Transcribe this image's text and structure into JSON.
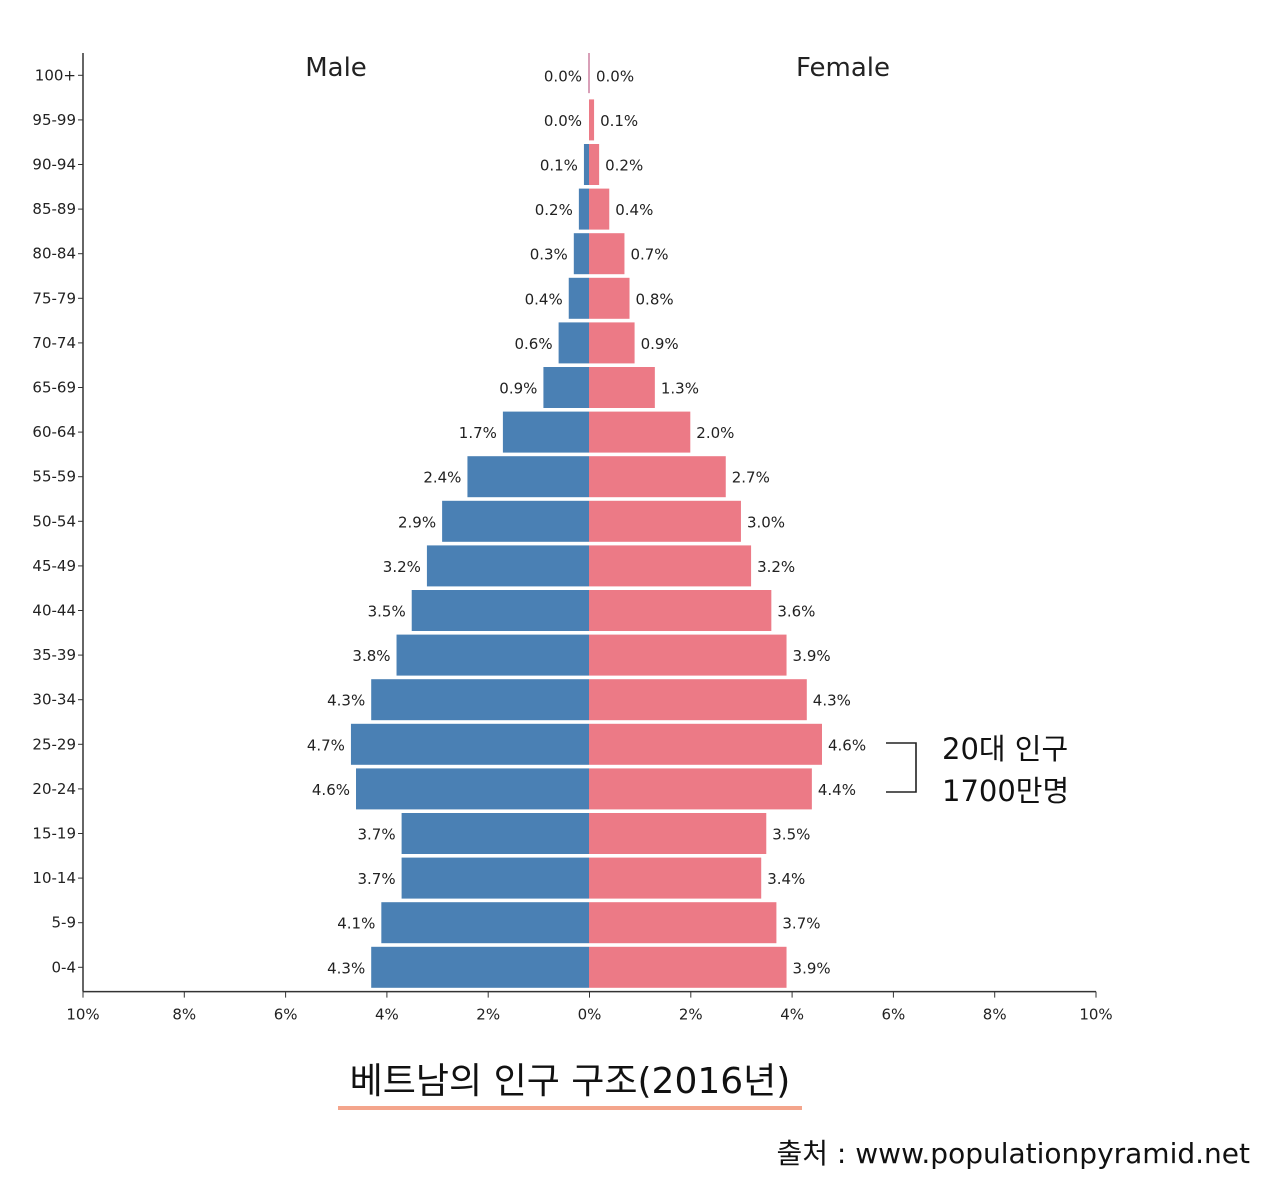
{
  "chart_data": {
    "type": "bar",
    "orientation": "horizontal-pyramid",
    "male_title": "Male",
    "female_title": "Female",
    "categories": [
      "100+",
      "95-99",
      "90-94",
      "85-89",
      "80-84",
      "75-79",
      "70-74",
      "65-69",
      "60-64",
      "55-59",
      "50-54",
      "45-49",
      "40-44",
      "35-39",
      "30-34",
      "25-29",
      "20-24",
      "15-19",
      "10-14",
      "5-9",
      "0-4"
    ],
    "series": [
      {
        "name": "Male",
        "color": "#4a80b4",
        "values": [
          0.0,
          0.0,
          0.1,
          0.2,
          0.3,
          0.4,
          0.6,
          0.9,
          1.7,
          2.4,
          2.9,
          3.2,
          3.5,
          3.8,
          4.3,
          4.7,
          4.6,
          3.7,
          3.7,
          4.1,
          4.3
        ],
        "labels": [
          "0.0%",
          "0.0%",
          "0.1%",
          "0.2%",
          "0.3%",
          "0.4%",
          "0.6%",
          "0.9%",
          "1.7%",
          "2.4%",
          "2.9%",
          "3.2%",
          "3.5%",
          "3.8%",
          "4.3%",
          "4.7%",
          "4.6%",
          "3.7%",
          "3.7%",
          "4.1%",
          "4.3%"
        ]
      },
      {
        "name": "Female",
        "color": "#ec7a86",
        "values": [
          0.0,
          0.1,
          0.2,
          0.4,
          0.7,
          0.8,
          0.9,
          1.3,
          2.0,
          2.7,
          3.0,
          3.2,
          3.6,
          3.9,
          4.3,
          4.6,
          4.4,
          3.5,
          3.4,
          3.7,
          3.9
        ],
        "labels": [
          "0.0%",
          "0.1%",
          "0.2%",
          "0.4%",
          "0.7%",
          "0.8%",
          "0.9%",
          "1.3%",
          "2.0%",
          "2.7%",
          "3.0%",
          "3.2%",
          "3.6%",
          "3.9%",
          "4.3%",
          "4.6%",
          "4.4%",
          "3.5%",
          "3.4%",
          "3.7%",
          "3.9%"
        ]
      }
    ],
    "xlim": [
      -10,
      10
    ],
    "xticks": [
      "10%",
      "8%",
      "6%",
      "4%",
      "2%",
      "0%",
      "2%",
      "4%",
      "6%",
      "8%",
      "10%"
    ],
    "grid": false,
    "annotation": {
      "lines": [
        "20대 인구",
        "1700만명"
      ],
      "categories": [
        "25-29",
        "20-24"
      ]
    }
  },
  "caption": "베트남의 인구 구조(2016년)",
  "source": "출처 : www.populationpyramid.net",
  "colors": {
    "male": "#4a80b4",
    "female": "#ec7a86",
    "center_line": "#d9a0b8",
    "underline": "#f4a58c"
  }
}
